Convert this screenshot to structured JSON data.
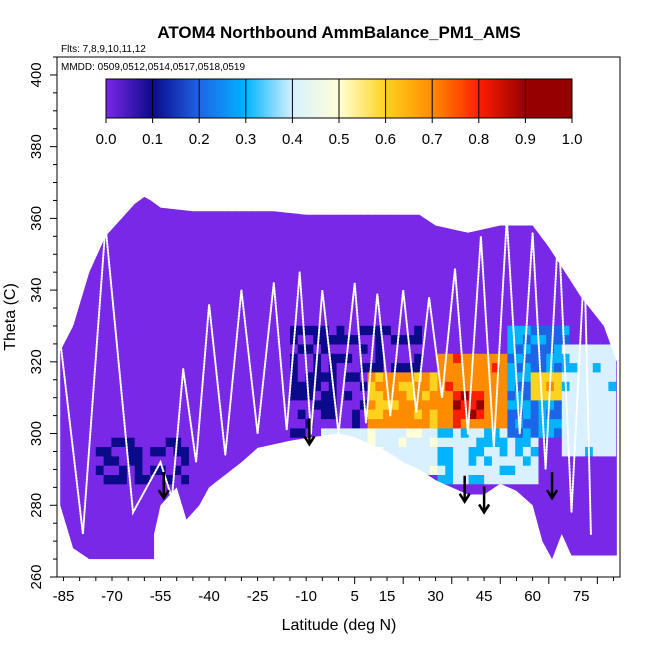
{
  "chart_data": {
    "type": "heatmap",
    "title": "ATOM4 Northbound AmmBalance_PM1_AMS",
    "annotations": [
      "Flts: 7,8,9,10,11,12",
      "MMDD: 0509,0512,0514,0517,0518,0519"
    ],
    "xlabel": "Latitude (deg N)",
    "ylabel": "Theta (C)",
    "xlim": [
      -87,
      87
    ],
    "ylim": [
      260,
      405
    ],
    "x_ticks": [
      -85,
      -70,
      -55,
      -40,
      -25,
      -10,
      5,
      15,
      30,
      45,
      60,
      75
    ],
    "y_ticks": [
      260,
      280,
      300,
      320,
      340,
      360,
      380,
      400
    ],
    "colorbar": {
      "range": [
        0,
        1
      ],
      "ticks": [
        "0.0",
        "0.1",
        "0.2",
        "0.3",
        "0.4",
        "0.5",
        "0.6",
        "0.7",
        "0.8",
        "0.9",
        "1.0"
      ],
      "colors": [
        "#7a28e8",
        "#0a0a8a",
        "#1e64e6",
        "#00b4ff",
        "#d8f0ff",
        "#ffffd8",
        "#ffd21e",
        "#ff8c00",
        "#ff1e00",
        "#960000"
      ]
    },
    "upper_boundary": [
      [
        -86,
        323
      ],
      [
        -82,
        330
      ],
      [
        -77,
        345
      ],
      [
        -72,
        355
      ],
      [
        -67,
        360
      ],
      [
        -63,
        364
      ],
      [
        -60,
        366
      ],
      [
        -58,
        365
      ],
      [
        -55,
        363
      ],
      [
        -45,
        362
      ],
      [
        -30,
        362
      ],
      [
        -20,
        362
      ],
      [
        -10,
        361
      ],
      [
        0,
        361
      ],
      [
        10,
        361
      ],
      [
        20,
        361
      ],
      [
        25,
        361
      ],
      [
        30,
        358
      ],
      [
        40,
        356
      ],
      [
        50,
        358
      ],
      [
        60,
        358
      ],
      [
        65,
        352
      ],
      [
        70,
        345
      ],
      [
        75,
        338
      ],
      [
        82,
        330
      ],
      [
        86,
        320
      ]
    ],
    "lower_boundary": [
      [
        -86,
        280
      ],
      [
        -82,
        268
      ],
      [
        -77,
        265
      ],
      [
        -70,
        265
      ],
      [
        -62,
        265
      ],
      [
        -57,
        265
      ],
      [
        -57,
        272
      ],
      [
        -55,
        280
      ],
      [
        -50,
        285
      ],
      [
        -47,
        276
      ],
      [
        -43,
        280
      ],
      [
        -40,
        285
      ],
      [
        -30,
        292
      ],
      [
        -25,
        296
      ],
      [
        -15,
        298
      ],
      [
        -8,
        299
      ],
      [
        0,
        300
      ],
      [
        5,
        299
      ],
      [
        10,
        297
      ],
      [
        15,
        295
      ],
      [
        20,
        292
      ],
      [
        25,
        290
      ],
      [
        30,
        287
      ],
      [
        35,
        285
      ],
      [
        40,
        283
      ],
      [
        45,
        283
      ],
      [
        50,
        286
      ],
      [
        55,
        284
      ],
      [
        60,
        280
      ],
      [
        63,
        270
      ],
      [
        66,
        265
      ],
      [
        69,
        272
      ],
      [
        72,
        266
      ],
      [
        76,
        266
      ],
      [
        82,
        266
      ],
      [
        86,
        266
      ]
    ],
    "field_levels": [
      {
        "lat": [
          -86,
          86
        ],
        "theta": [
          262,
          366
        ],
        "value": 0.02
      },
      {
        "lat": [
          -15,
          25
        ],
        "theta": [
          300,
          330
        ],
        "value": 0.1
      },
      {
        "lat": [
          -5,
          30
        ],
        "theta": [
          288,
          302
        ],
        "value": 0.47
      },
      {
        "lat": [
          10,
          30
        ],
        "theta": [
          302,
          318
        ],
        "value": 0.72
      },
      {
        "lat": [
          30,
          62
        ],
        "theta": [
          286,
          302
        ],
        "value": 0.4
      },
      {
        "lat": [
          30,
          58
        ],
        "theta": [
          302,
          322
        ],
        "value": 0.76
      },
      {
        "lat": [
          36,
          46
        ],
        "theta": [
          305,
          312
        ],
        "value": 0.87
      },
      {
        "lat": [
          52,
          72
        ],
        "theta": [
          300,
          330
        ],
        "value": 0.3
      },
      {
        "lat": [
          70,
          86
        ],
        "theta": [
          294,
          325
        ],
        "value": 0.44
      },
      {
        "lat": [
          60,
          70
        ],
        "theta": [
          310,
          318
        ],
        "value": 0.66
      },
      {
        "lat": [
          -75,
          -45
        ],
        "theta": [
          286,
          300
        ],
        "value": 0.1
      }
    ],
    "profiles": [
      {
        "lat": -86,
        "top": 326,
        "bottom": 272
      },
      {
        "lat": -72,
        "top": 358,
        "bottom": 278
      },
      {
        "lat": -55,
        "top": 292,
        "bottom": 282
      },
      {
        "lat": -48,
        "top": 318,
        "bottom": 292
      },
      {
        "lat": -40,
        "top": 336,
        "bottom": 294
      },
      {
        "lat": -30,
        "top": 340,
        "bottom": 300
      },
      {
        "lat": -20,
        "top": 342,
        "bottom": 301
      },
      {
        "lat": -12,
        "top": 345,
        "bottom": 300
      },
      {
        "lat": -5,
        "top": 340,
        "bottom": 300
      },
      {
        "lat": 5,
        "top": 342,
        "bottom": 303
      },
      {
        "lat": 12,
        "top": 339,
        "bottom": 305
      },
      {
        "lat": 20,
        "top": 340,
        "bottom": 306
      },
      {
        "lat": 28,
        "top": 338,
        "bottom": 310
      },
      {
        "lat": 36,
        "top": 346,
        "bottom": 300
      },
      {
        "lat": 44,
        "top": 355,
        "bottom": 296
      },
      {
        "lat": 52,
        "top": 360,
        "bottom": 300
      },
      {
        "lat": 60,
        "top": 356,
        "bottom": 290
      },
      {
        "lat": 68,
        "top": 358,
        "bottom": 278
      },
      {
        "lat": 76,
        "top": 348,
        "bottom": 272
      }
    ],
    "arrows": [
      {
        "lat": -54,
        "theta": 282
      },
      {
        "lat": -9,
        "theta": 297
      },
      {
        "lat": 39,
        "theta": 281
      },
      {
        "lat": 45,
        "theta": 278
      },
      {
        "lat": 66,
        "theta": 282
      }
    ]
  }
}
